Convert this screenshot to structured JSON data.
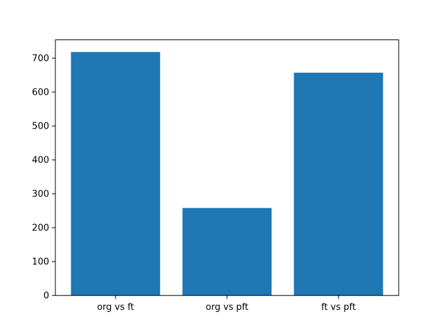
{
  "chart_data": {
    "type": "bar",
    "title": "",
    "xlabel": "",
    "ylabel": "",
    "categories": [
      "org vs ft",
      "org vs pft",
      "ft vs pft"
    ],
    "values": [
      718,
      258,
      657
    ],
    "yticks": [
      0,
      100,
      200,
      300,
      400,
      500,
      600,
      700
    ],
    "ytick_labels": [
      "0",
      "100",
      "200",
      "300",
      "400",
      "500",
      "600",
      "700"
    ],
    "ylim": [
      0,
      754
    ],
    "bar_color": "#1f77b4",
    "spine_color": "#000000",
    "text_color": "#000000",
    "background_color": "#ffffff",
    "grid": false,
    "legend": null
  }
}
